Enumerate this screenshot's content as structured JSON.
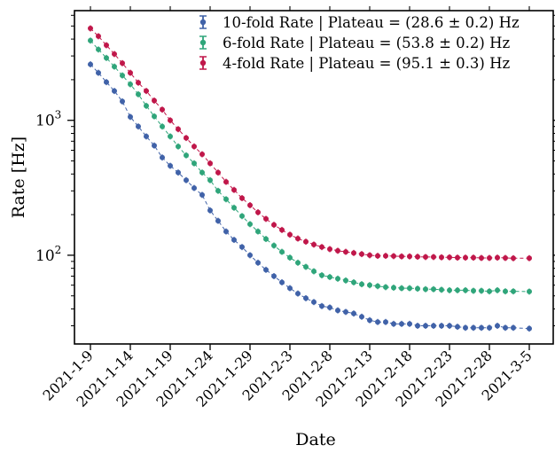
{
  "chart_data": {
    "type": "scatter",
    "title": "",
    "xlabel": "Date",
    "ylabel": "Rate [Hz]",
    "y_scale": "log",
    "ylim": [
      22,
      6500
    ],
    "xlim": [
      "2021-01-07",
      "2021-03-08"
    ],
    "grid": false,
    "legend_position": "top-right",
    "x_ticks": [
      "2021-01-09",
      "2021-01-14",
      "2021-01-19",
      "2021-01-24",
      "2021-01-29",
      "2021-02-03",
      "2021-02-08",
      "2021-02-13",
      "2021-02-18",
      "2021-02-23",
      "2021-02-28",
      "2021-03-05"
    ],
    "x_tick_labels": [
      "2021-1-9",
      "2021-1-14",
      "2021-1-19",
      "2021-1-24",
      "2021-1-29",
      "2021-2-3",
      "2021-2-8",
      "2021-2-13",
      "2021-2-18",
      "2021-2-23",
      "2021-2-28",
      "2021-3-5"
    ],
    "y_tick_labels": [
      {
        "value": 100,
        "base": "10",
        "exp": "2"
      },
      {
        "value": 1000,
        "base": "10",
        "exp": "3"
      }
    ],
    "series": [
      {
        "name": "10-fold Rate | Plateau = (28.6 ± 0.2) Hz",
        "color": "#4062a8",
        "marker": "circle",
        "data": [
          [
            "2021-01-09",
            2600
          ],
          [
            "2021-01-10",
            2250
          ],
          [
            "2021-01-11",
            1920
          ],
          [
            "2021-01-12",
            1650
          ],
          [
            "2021-01-13",
            1380
          ],
          [
            "2021-01-14",
            1060
          ],
          [
            "2021-01-15",
            900
          ],
          [
            "2021-01-16",
            760
          ],
          [
            "2021-01-17",
            650
          ],
          [
            "2021-01-18",
            530
          ],
          [
            "2021-01-19",
            460
          ],
          [
            "2021-01-20",
            410
          ],
          [
            "2021-01-21",
            360
          ],
          [
            "2021-01-22",
            315
          ],
          [
            "2021-01-23",
            280
          ],
          [
            "2021-01-24",
            215
          ],
          [
            "2021-01-25",
            180
          ],
          [
            "2021-01-26",
            150
          ],
          [
            "2021-01-27",
            130
          ],
          [
            "2021-01-28",
            115
          ],
          [
            "2021-01-29",
            100
          ],
          [
            "2021-01-30",
            88
          ],
          [
            "2021-01-31",
            78
          ],
          [
            "2021-02-01",
            70
          ],
          [
            "2021-02-02",
            63
          ],
          [
            "2021-02-03",
            57
          ],
          [
            "2021-02-04",
            52
          ],
          [
            "2021-02-05",
            48
          ],
          [
            "2021-02-06",
            45
          ],
          [
            "2021-02-07",
            42
          ],
          [
            "2021-02-08",
            41
          ],
          [
            "2021-02-09",
            39
          ],
          [
            "2021-02-10",
            38
          ],
          [
            "2021-02-11",
            37
          ],
          [
            "2021-02-12",
            35
          ],
          [
            "2021-02-13",
            33
          ],
          [
            "2021-02-14",
            32
          ],
          [
            "2021-02-15",
            32
          ],
          [
            "2021-02-16",
            31
          ],
          [
            "2021-02-17",
            31
          ],
          [
            "2021-02-18",
            31
          ],
          [
            "2021-02-19",
            30
          ],
          [
            "2021-02-20",
            30
          ],
          [
            "2021-02-21",
            30
          ],
          [
            "2021-02-22",
            30
          ],
          [
            "2021-02-23",
            30
          ],
          [
            "2021-02-24",
            29.5
          ],
          [
            "2021-02-25",
            29
          ],
          [
            "2021-02-26",
            29
          ],
          [
            "2021-02-27",
            29
          ],
          [
            "2021-02-28",
            29
          ],
          [
            "2021-03-01",
            30
          ],
          [
            "2021-03-02",
            29
          ],
          [
            "2021-03-03",
            29
          ],
          [
            "2021-03-05",
            28.6
          ]
        ]
      },
      {
        "name": "6-fold Rate | Plateau = (53.8 ± 0.2) Hz",
        "color": "#2fa57a",
        "marker": "circle",
        "data": [
          [
            "2021-01-09",
            3900
          ],
          [
            "2021-01-10",
            3350
          ],
          [
            "2021-01-11",
            2900
          ],
          [
            "2021-01-12",
            2500
          ],
          [
            "2021-01-13",
            2150
          ],
          [
            "2021-01-14",
            1850
          ],
          [
            "2021-01-15",
            1560
          ],
          [
            "2021-01-16",
            1280
          ],
          [
            "2021-01-17",
            1070
          ],
          [
            "2021-01-18",
            900
          ],
          [
            "2021-01-19",
            760
          ],
          [
            "2021-01-20",
            640
          ],
          [
            "2021-01-21",
            550
          ],
          [
            "2021-01-22",
            480
          ],
          [
            "2021-01-23",
            410
          ],
          [
            "2021-01-24",
            360
          ],
          [
            "2021-01-25",
            300
          ],
          [
            "2021-01-26",
            260
          ],
          [
            "2021-01-27",
            225
          ],
          [
            "2021-01-28",
            195
          ],
          [
            "2021-01-29",
            170
          ],
          [
            "2021-01-30",
            150
          ],
          [
            "2021-01-31",
            132
          ],
          [
            "2021-02-01",
            118
          ],
          [
            "2021-02-02",
            106
          ],
          [
            "2021-02-03",
            96
          ],
          [
            "2021-02-04",
            88
          ],
          [
            "2021-02-05",
            82
          ],
          [
            "2021-02-06",
            76
          ],
          [
            "2021-02-07",
            71
          ],
          [
            "2021-02-08",
            69
          ],
          [
            "2021-02-09",
            67
          ],
          [
            "2021-02-10",
            65
          ],
          [
            "2021-02-11",
            63
          ],
          [
            "2021-02-12",
            61
          ],
          [
            "2021-02-13",
            60
          ],
          [
            "2021-02-14",
            59
          ],
          [
            "2021-02-15",
            58
          ],
          [
            "2021-02-16",
            57.5
          ],
          [
            "2021-02-17",
            57
          ],
          [
            "2021-02-18",
            57
          ],
          [
            "2021-02-19",
            56.5
          ],
          [
            "2021-02-20",
            56
          ],
          [
            "2021-02-21",
            56
          ],
          [
            "2021-02-22",
            55.5
          ],
          [
            "2021-02-23",
            55
          ],
          [
            "2021-02-24",
            55
          ],
          [
            "2021-02-25",
            55
          ],
          [
            "2021-02-26",
            54.5
          ],
          [
            "2021-02-27",
            54.5
          ],
          [
            "2021-02-28",
            54
          ],
          [
            "2021-03-01",
            55
          ],
          [
            "2021-03-02",
            54
          ],
          [
            "2021-03-03",
            54
          ],
          [
            "2021-03-05",
            53.8
          ]
        ]
      },
      {
        "name": "4-fold Rate | Plateau = (95.1 ± 0.3) Hz",
        "color": "#c0174a",
        "marker": "circle",
        "data": [
          [
            "2021-01-09",
            4800
          ],
          [
            "2021-01-10",
            4200
          ],
          [
            "2021-01-11",
            3600
          ],
          [
            "2021-01-12",
            3100
          ],
          [
            "2021-01-13",
            2650
          ],
          [
            "2021-01-14",
            2250
          ],
          [
            "2021-01-15",
            1900
          ],
          [
            "2021-01-16",
            1650
          ],
          [
            "2021-01-17",
            1400
          ],
          [
            "2021-01-18",
            1200
          ],
          [
            "2021-01-19",
            1000
          ],
          [
            "2021-01-20",
            860
          ],
          [
            "2021-01-21",
            740
          ],
          [
            "2021-01-22",
            640
          ],
          [
            "2021-01-23",
            560
          ],
          [
            "2021-01-24",
            480
          ],
          [
            "2021-01-25",
            410
          ],
          [
            "2021-01-26",
            350
          ],
          [
            "2021-01-27",
            305
          ],
          [
            "2021-01-28",
            265
          ],
          [
            "2021-01-29",
            235
          ],
          [
            "2021-01-30",
            208
          ],
          [
            "2021-01-31",
            186
          ],
          [
            "2021-02-01",
            168
          ],
          [
            "2021-02-02",
            154
          ],
          [
            "2021-02-03",
            142
          ],
          [
            "2021-02-04",
            133
          ],
          [
            "2021-02-05",
            126
          ],
          [
            "2021-02-06",
            120
          ],
          [
            "2021-02-07",
            115
          ],
          [
            "2021-02-08",
            111
          ],
          [
            "2021-02-09",
            108
          ],
          [
            "2021-02-10",
            106
          ],
          [
            "2021-02-11",
            104
          ],
          [
            "2021-02-12",
            102
          ],
          [
            "2021-02-13",
            100
          ],
          [
            "2021-02-14",
            99
          ],
          [
            "2021-02-15",
            99
          ],
          [
            "2021-02-16",
            98.5
          ],
          [
            "2021-02-17",
            98
          ],
          [
            "2021-02-18",
            98
          ],
          [
            "2021-02-19",
            97.5
          ],
          [
            "2021-02-20",
            97
          ],
          [
            "2021-02-21",
            97
          ],
          [
            "2021-02-22",
            96.5
          ],
          [
            "2021-02-23",
            96.5
          ],
          [
            "2021-02-24",
            96
          ],
          [
            "2021-02-25",
            96
          ],
          [
            "2021-02-26",
            96
          ],
          [
            "2021-02-27",
            95.5
          ],
          [
            "2021-02-28",
            95.5
          ],
          [
            "2021-03-01",
            96
          ],
          [
            "2021-03-02",
            95.5
          ],
          [
            "2021-03-03",
            95
          ],
          [
            "2021-03-05",
            95.1
          ]
        ]
      }
    ]
  }
}
